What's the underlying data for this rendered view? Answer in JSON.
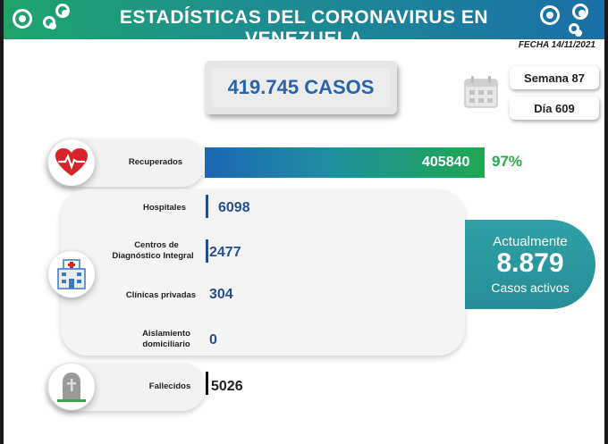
{
  "header": {
    "title": "ESTADÍSTICAS DEL CORONAVIRUS EN VENEZUELA",
    "date": "FECHA 14/11/2021"
  },
  "cases": "419.745 CASOS",
  "week": "Semana 87",
  "day": "Día 609",
  "recovered": {
    "label": "Recuperados",
    "value": "405840",
    "percent": "97%"
  },
  "hospital": {
    "label": "Hospitales",
    "value": "6098"
  },
  "cdi": {
    "label_1": "Centros de",
    "label_2": "Diagnóstico Integral",
    "value": "2477"
  },
  "clinics": {
    "label": "Clínicas privadas",
    "value": "304"
  },
  "home": {
    "label_1": "Aislamiento",
    "label_2": "domiciliario",
    "value": "0"
  },
  "deaths": {
    "label": "Fallecidos",
    "value": "5026"
  },
  "active": {
    "line1": "Actualmente",
    "value": "8.879",
    "line3": "Casos activos"
  },
  "colors": {
    "cases_text": "#2a63a8",
    "numbers": "#264f8f",
    "percent": "#27a84a",
    "active_bg": "#2fa1a6"
  },
  "icons": {
    "recovered": "heart-pulse-icon",
    "health": "hospital-icon",
    "deaths": "tombstone-icon",
    "calendar": "calendar-icon",
    "virus": "virus-icon"
  }
}
